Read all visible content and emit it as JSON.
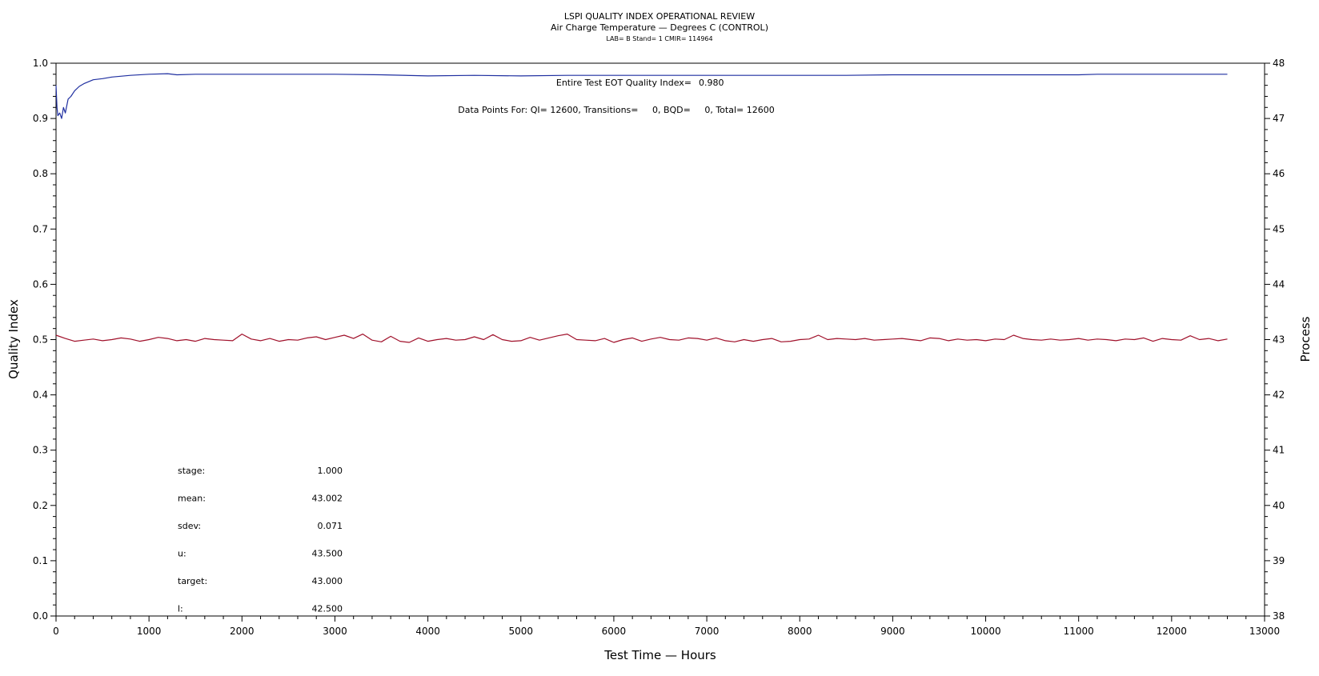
{
  "chart_data": {
    "type": "line",
    "title": "LSPI QUALITY INDEX OPERATIONAL REVIEW",
    "subtitle": "Air Charge Temperature — Degrees C (CONTROL)",
    "subtitle2": "LAB= B Stand= 1 CMIR= 114964",
    "xlabel": "Test Time — Hours",
    "ylabel_left": "Quality Index",
    "ylabel_right": "Process",
    "xlim": [
      0,
      13000
    ],
    "ylim_left": [
      0.0,
      1.0
    ],
    "ylim_right": [
      38,
      48
    ],
    "xticks": [
      "0",
      "1000",
      "2000",
      "3000",
      "4000",
      "5000",
      "6000",
      "7000",
      "8000",
      "9000",
      "10000",
      "11000",
      "12000",
      "13000"
    ],
    "yticks_left": [
      "0.0",
      "0.1",
      "0.2",
      "0.3",
      "0.4",
      "0.5",
      "0.6",
      "0.7",
      "0.8",
      "0.9",
      "1.0"
    ],
    "yticks_right": [
      "38",
      "39",
      "40",
      "41",
      "42",
      "43",
      "44",
      "45",
      "46",
      "47",
      "48"
    ],
    "grid": false,
    "colors": {
      "quality_index": "#1f2fa0",
      "process": "#a0102a"
    },
    "annotations": {
      "eot_label": "Entire Test EOT Quality Index=",
      "eot_value": "0.980",
      "data_points": "Data Points For: QI= 12600, Transitions=     0, BQD=     0, Total= 12600"
    },
    "stats": [
      {
        "label": "stage:",
        "value": "1.000"
      },
      {
        "label": "mean:",
        "value": "43.002"
      },
      {
        "label": "sdev:",
        "value": "0.071"
      },
      {
        "label": "u:",
        "value": "43.500"
      },
      {
        "label": "target:",
        "value": "43.000"
      },
      {
        "label": "l:",
        "value": "42.500"
      }
    ],
    "series": [
      {
        "axis": "left",
        "x": [
          0,
          10,
          20,
          40,
          60,
          80,
          100,
          130,
          160,
          200,
          250,
          300,
          400,
          500,
          600,
          800,
          1000,
          1200,
          1300,
          1500,
          2000,
          2500,
          3000,
          3500,
          4000,
          4500,
          5000,
          5500,
          6000,
          6500,
          7000,
          7500,
          8000,
          8500,
          9000,
          10000,
          11000,
          11200,
          12000,
          12600
        ],
        "y": [
          0.96,
          0.92,
          0.905,
          0.91,
          0.9,
          0.92,
          0.91,
          0.935,
          0.94,
          0.95,
          0.958,
          0.963,
          0.97,
          0.972,
          0.975,
          0.978,
          0.98,
          0.981,
          0.979,
          0.98,
          0.98,
          0.98,
          0.98,
          0.979,
          0.977,
          0.978,
          0.977,
          0.978,
          0.978,
          0.978,
          0.978,
          0.978,
          0.978,
          0.978,
          0.979,
          0.979,
          0.979,
          0.98,
          0.98,
          0.98
        ]
      },
      {
        "axis": "right",
        "x": [
          0,
          100,
          200,
          300,
          400,
          500,
          600,
          700,
          800,
          900,
          1000,
          1100,
          1200,
          1300,
          1400,
          1500,
          1600,
          1700,
          1800,
          1900,
          2000,
          2100,
          2200,
          2300,
          2400,
          2500,
          2600,
          2700,
          2800,
          2900,
          3000,
          3100,
          3200,
          3300,
          3400,
          3500,
          3600,
          3700,
          3800,
          3900,
          4000,
          4100,
          4200,
          4300,
          4400,
          4500,
          4600,
          4700,
          4800,
          4900,
          5000,
          5100,
          5200,
          5300,
          5400,
          5500,
          5600,
          5700,
          5800,
          5900,
          6000,
          6100,
          6200,
          6300,
          6400,
          6500,
          6600,
          6700,
          6800,
          6900,
          7000,
          7100,
          7200,
          7300,
          7400,
          7500,
          7600,
          7700,
          7800,
          7900,
          8000,
          8100,
          8200,
          8300,
          8400,
          8500,
          8600,
          8700,
          8800,
          8900,
          9000,
          9100,
          9200,
          9300,
          9400,
          9500,
          9600,
          9700,
          9800,
          9900,
          10000,
          10100,
          10200,
          10300,
          10400,
          10500,
          10600,
          10700,
          10800,
          10900,
          11000,
          11100,
          11200,
          11300,
          11400,
          11500,
          11600,
          11700,
          11800,
          11900,
          12000,
          12100,
          12200,
          12300,
          12400,
          12500,
          12600
        ],
        "y": [
          43.08,
          43.02,
          42.97,
          42.99,
          43.01,
          42.98,
          43.0,
          43.03,
          43.01,
          42.97,
          43.0,
          43.04,
          43.02,
          42.98,
          43.0,
          42.97,
          43.02,
          43.0,
          42.99,
          42.98,
          43.1,
          43.01,
          42.98,
          43.02,
          42.97,
          43.0,
          42.99,
          43.03,
          43.05,
          43.0,
          43.04,
          43.08,
          43.02,
          43.1,
          42.99,
          42.96,
          43.06,
          42.97,
          42.95,
          43.03,
          42.97,
          43.0,
          43.02,
          42.99,
          43.0,
          43.05,
          43.0,
          43.09,
          43.0,
          42.97,
          42.98,
          43.04,
          42.99,
          43.03,
          43.07,
          43.1,
          43.0,
          42.99,
          42.98,
          43.02,
          42.95,
          43.0,
          43.03,
          42.97,
          43.01,
          43.04,
          43.0,
          42.99,
          43.03,
          43.02,
          42.99,
          43.03,
          42.98,
          42.96,
          43.0,
          42.97,
          43.0,
          43.02,
          42.96,
          42.97,
          43.0,
          43.01,
          43.08,
          43.0,
          43.02,
          43.01,
          43.0,
          43.02,
          42.99,
          43.0,
          43.01,
          43.02,
          43.0,
          42.98,
          43.03,
          43.02,
          42.98,
          43.01,
          42.99,
          43.0,
          42.98,
          43.01,
          43.0,
          43.08,
          43.02,
          43.0,
          42.99,
          43.01,
          42.99,
          43.0,
          43.02,
          42.99,
          43.01,
          43.0,
          42.98,
          43.01,
          43.0,
          43.03,
          42.97,
          43.02,
          43.0,
          42.99,
          43.07,
          43.0,
          43.02,
          42.98,
          43.01
        ]
      }
    ]
  }
}
